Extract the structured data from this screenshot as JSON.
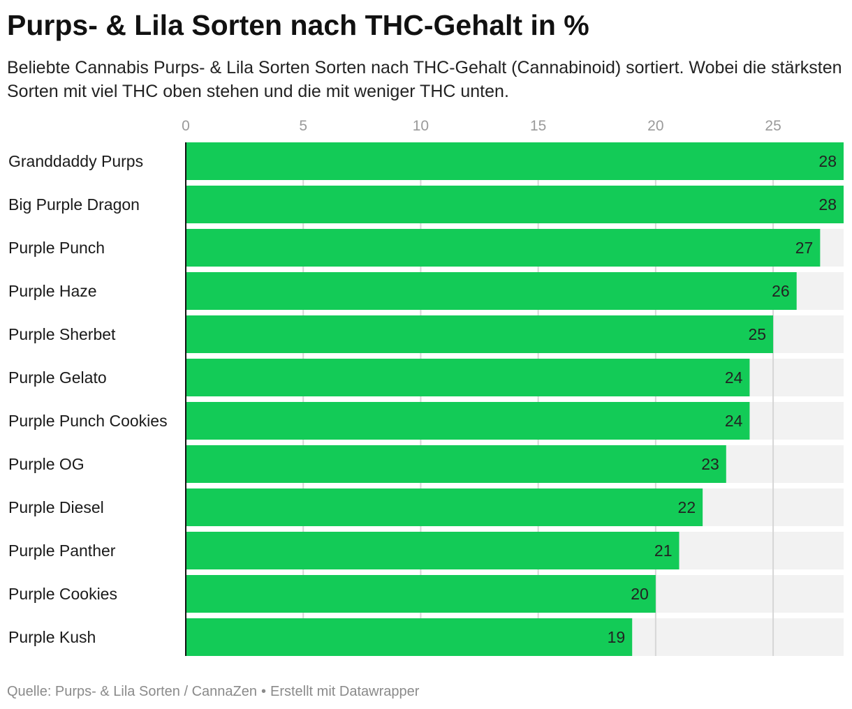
{
  "header": {
    "title": "Purps- & Lila Sorten nach THC-Gehalt in %",
    "subtitle": "Beliebte Cannabis Purps- & Lila Sorten Sorten nach THC-Gehalt (Cannabinoid) sortiert. Wobei die stärksten Sorten mit viel THC oben stehen und die mit weniger THC unten."
  },
  "footer": {
    "source": "Quelle: Purps- & Lila Sorten / CannaZen",
    "separator": "•",
    "credit": "Erstellt mit Datawrapper"
  },
  "colors": {
    "bar": "#13cb57",
    "track": "#f2f2f2",
    "gridline": "#d6d6d6",
    "tick_label": "#9a9a9a",
    "value_label": "#222222"
  },
  "chart_data": {
    "type": "bar",
    "orientation": "horizontal",
    "title": "Purps- & Lila Sorten nach THC-Gehalt in %",
    "xlabel": "",
    "ylabel": "",
    "xlim": [
      0,
      28
    ],
    "ticks": [
      0,
      5,
      10,
      15,
      20,
      25
    ],
    "grid": true,
    "categories": [
      "Granddaddy Purps",
      "Big Purple Dragon",
      "Purple Punch",
      "Purple Haze",
      "Purple Sherbet",
      "Purple Gelato",
      "Purple Punch Cookies",
      "Purple OG",
      "Purple Diesel",
      "Purple Panther",
      "Purple Cookies",
      "Purple Kush"
    ],
    "values": [
      28,
      28,
      27,
      26,
      25,
      24,
      24,
      23,
      22,
      21,
      20,
      19
    ]
  }
}
